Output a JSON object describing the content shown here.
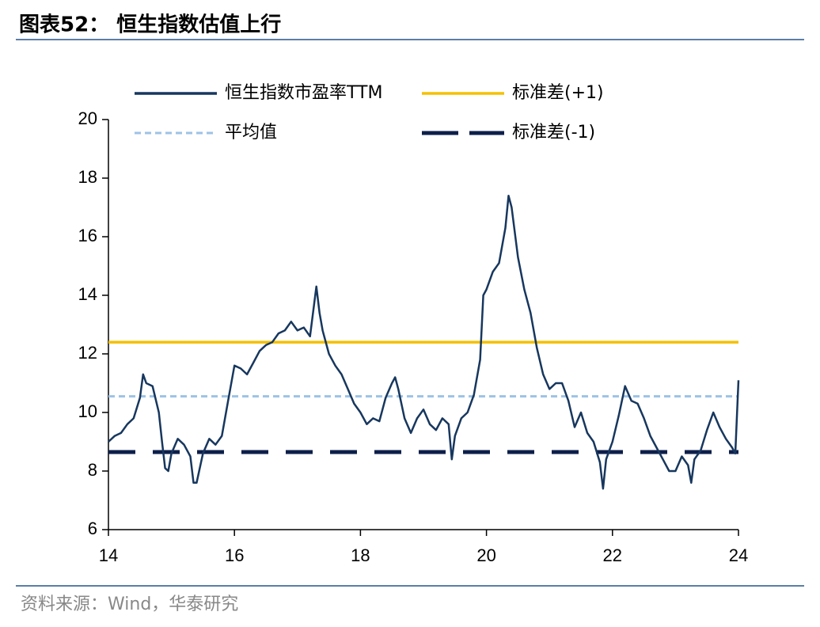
{
  "header": {
    "title": "图表52： 恒生指数估值上行"
  },
  "footer": {
    "source": "资料来源：Wind，华泰研究"
  },
  "chart_data": {
    "type": "line",
    "xlim": [
      14,
      24
    ],
    "xticks": [
      14,
      16,
      18,
      20,
      22,
      24
    ],
    "ylim": [
      6,
      20
    ],
    "yticks": [
      6,
      8,
      10,
      12,
      14,
      16,
      18,
      20
    ],
    "grid": false,
    "legend": "top",
    "series": [
      {
        "name": "恒生指数市盈率TTM",
        "color": "#17375e",
        "style": "solid",
        "x": [
          14.0,
          14.1,
          14.2,
          14.3,
          14.4,
          14.5,
          14.55,
          14.6,
          14.7,
          14.8,
          14.85,
          14.9,
          14.95,
          15.0,
          15.1,
          15.2,
          15.3,
          15.35,
          15.4,
          15.5,
          15.6,
          15.7,
          15.8,
          15.9,
          16.0,
          16.1,
          16.2,
          16.3,
          16.4,
          16.5,
          16.6,
          16.7,
          16.8,
          16.9,
          17.0,
          17.1,
          17.2,
          17.3,
          17.35,
          17.4,
          17.5,
          17.6,
          17.7,
          17.8,
          17.9,
          18.0,
          18.1,
          18.2,
          18.3,
          18.4,
          18.5,
          18.55,
          18.6,
          18.7,
          18.8,
          18.9,
          19.0,
          19.1,
          19.2,
          19.3,
          19.4,
          19.45,
          19.5,
          19.6,
          19.7,
          19.8,
          19.9,
          19.95,
          20.0,
          20.1,
          20.2,
          20.3,
          20.35,
          20.4,
          20.5,
          20.6,
          20.7,
          20.8,
          20.9,
          21.0,
          21.1,
          21.2,
          21.3,
          21.4,
          21.5,
          21.6,
          21.7,
          21.8,
          21.85,
          21.9,
          22.0,
          22.1,
          22.2,
          22.3,
          22.4,
          22.5,
          22.6,
          22.7,
          22.8,
          22.9,
          23.0,
          23.1,
          23.2,
          23.25,
          23.3,
          23.4,
          23.5,
          23.6,
          23.7,
          23.8,
          23.9,
          23.95,
          24.0
        ],
        "values": [
          9.0,
          9.2,
          9.3,
          9.6,
          9.8,
          10.5,
          11.3,
          11.0,
          10.9,
          10.0,
          9.0,
          8.1,
          8.0,
          8.6,
          9.1,
          8.9,
          8.5,
          7.6,
          7.6,
          8.6,
          9.1,
          8.9,
          9.2,
          10.4,
          11.6,
          11.5,
          11.3,
          11.7,
          12.1,
          12.3,
          12.4,
          12.7,
          12.8,
          13.1,
          12.8,
          12.9,
          12.6,
          14.3,
          13.4,
          12.8,
          12.0,
          11.6,
          11.3,
          10.8,
          10.3,
          10.0,
          9.6,
          9.8,
          9.7,
          10.5,
          11.0,
          11.2,
          10.8,
          9.8,
          9.3,
          9.8,
          10.1,
          9.6,
          9.4,
          9.8,
          9.6,
          8.4,
          9.2,
          9.8,
          10.0,
          10.6,
          11.8,
          14.0,
          14.2,
          14.8,
          15.1,
          16.3,
          17.4,
          17.0,
          15.3,
          14.2,
          13.4,
          12.2,
          11.3,
          10.8,
          11.0,
          11.0,
          10.4,
          9.5,
          10.0,
          9.3,
          9.0,
          8.3,
          7.4,
          8.4,
          9.0,
          9.9,
          10.9,
          10.4,
          10.3,
          9.8,
          9.2,
          8.8,
          8.4,
          8.0,
          8.0,
          8.5,
          8.2,
          7.6,
          8.4,
          8.7,
          9.4,
          10.0,
          9.5,
          9.1,
          8.8,
          8.6,
          11.1
        ]
      },
      {
        "name": "标准差(+1)",
        "color": "#f5c000",
        "style": "solid",
        "x": [
          14,
          24
        ],
        "values": [
          12.4,
          12.4
        ]
      },
      {
        "name": "平均值",
        "color": "#9dc3e6",
        "style": "dotted",
        "x": [
          14,
          24
        ],
        "values": [
          10.55,
          10.55
        ]
      },
      {
        "name": "标准差(-1)",
        "color": "#0d1f4a",
        "style": "dashed",
        "x": [
          14,
          24
        ],
        "values": [
          8.65,
          8.65
        ]
      }
    ]
  }
}
